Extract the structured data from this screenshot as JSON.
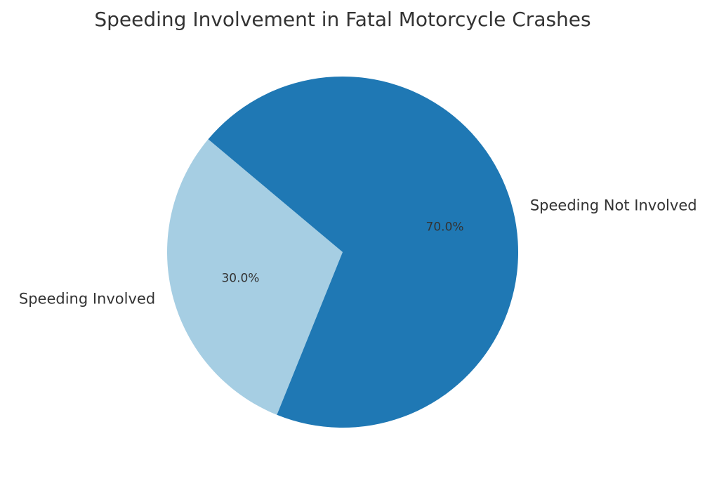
{
  "chart_data": {
    "type": "pie",
    "title": "Speeding Involvement in Fatal Motorcycle Crashes",
    "slices": [
      {
        "label": "Speeding Involved",
        "value": 30.0,
        "pct_label": "30.0%",
        "color": "#a6cee3"
      },
      {
        "label": "Speeding Not Involved",
        "value": 70.0,
        "pct_label": "70.0%",
        "color": "#1f78b4"
      }
    ],
    "start_angle_deg": 140,
    "direction": "counterclockwise",
    "legend": "none"
  }
}
